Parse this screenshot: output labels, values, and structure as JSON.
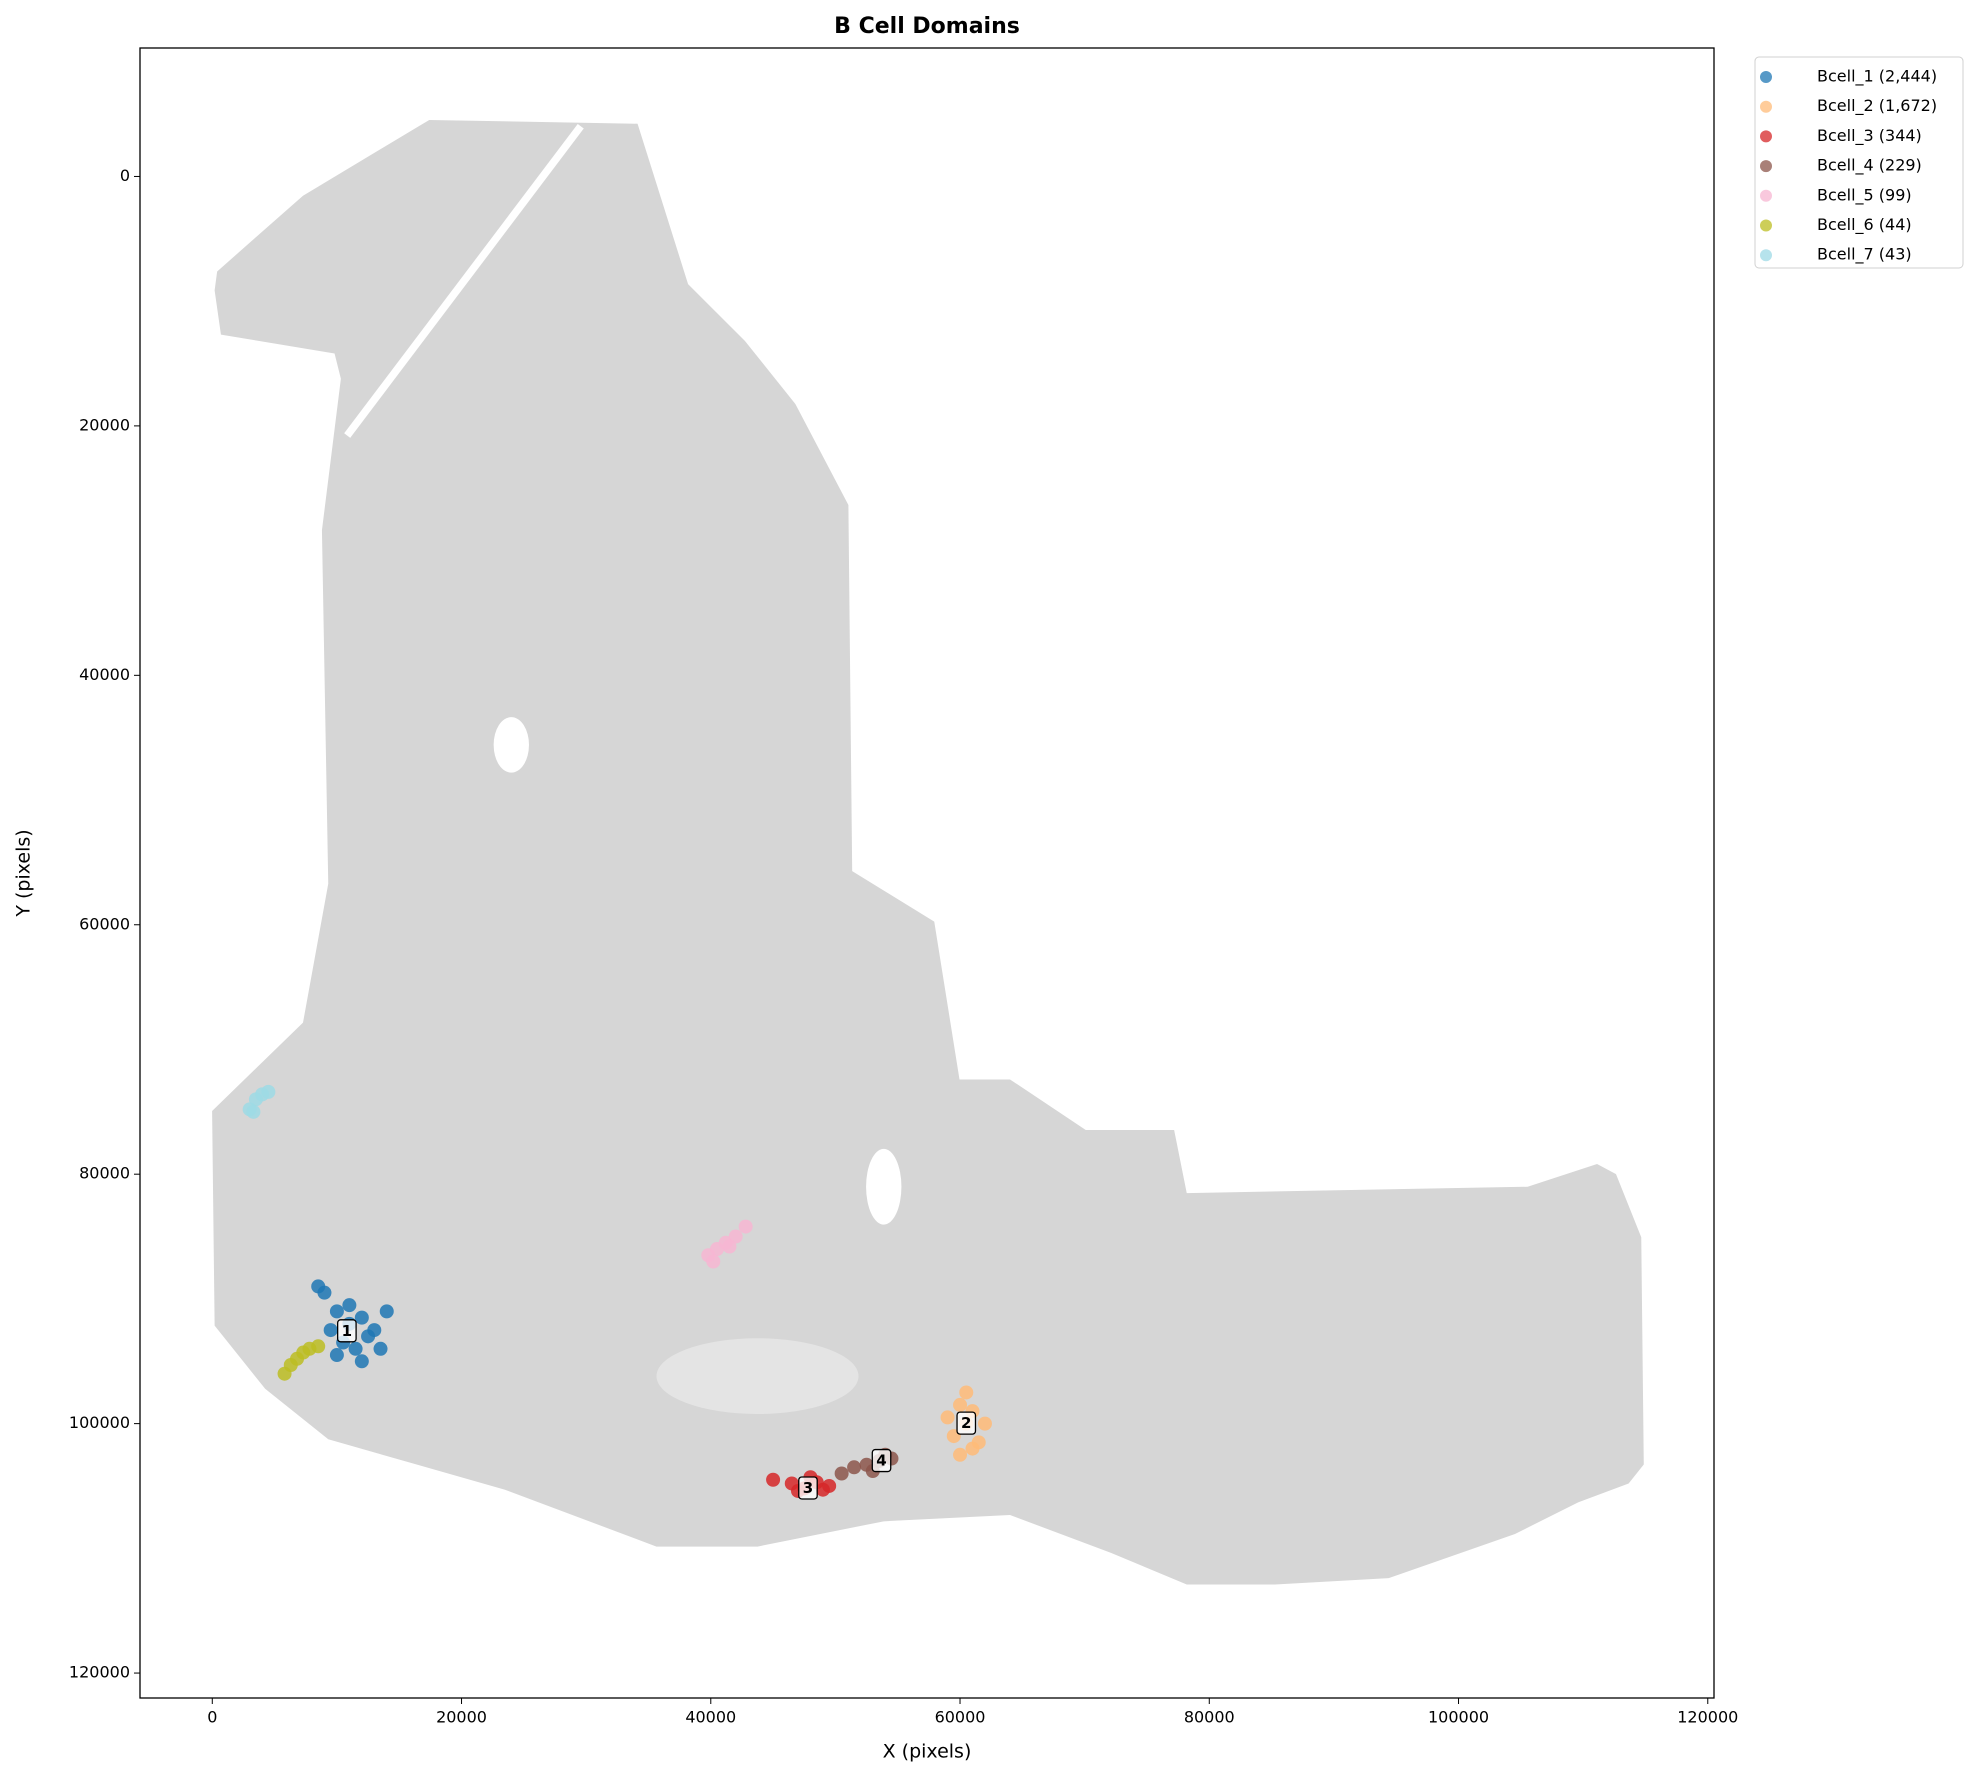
{
  "chart_data": {
    "type": "scatter",
    "title": "B Cell Domains",
    "x_label": "X (pixels)",
    "y_label": "Y (pixels)",
    "xlim": [
      -5800,
      120500
    ],
    "ylim": [
      122000,
      -10300
    ],
    "xticks": [
      0,
      20000,
      40000,
      60000,
      80000,
      100000,
      120000
    ],
    "yticks": [
      0,
      20000,
      40000,
      60000,
      80000,
      100000,
      120000
    ],
    "legend": "outside-upper-right",
    "series": [
      {
        "name": "Bcell_1 (2,444)",
        "color": "#1f77b4",
        "x": [
          9000,
          10000,
          11000,
          12000,
          13000,
          10500,
          11500,
          12500,
          9500,
          14000,
          10000,
          12000,
          11000,
          13500,
          8500
        ],
        "values": [
          89500,
          91000,
          92000,
          91500,
          92500,
          93500,
          94000,
          93000,
          92500,
          91000,
          94500,
          95000,
          90500,
          94000,
          89000
        ]
      },
      {
        "name": "Bcell_2 (1,672)",
        "color": "#ffbb78",
        "x": [
          59000,
          60000,
          61000,
          62000,
          60500,
          59500,
          61500,
          60000,
          61000,
          60500
        ],
        "values": [
          99500,
          98500,
          99000,
          100000,
          97500,
          101000,
          101500,
          102500,
          102000,
          100000
        ]
      },
      {
        "name": "Bcell_3 (344)",
        "color": "#d62728",
        "x": [
          45000,
          46500,
          47500,
          48500,
          49500,
          47000,
          48000,
          49000
        ],
        "values": [
          104500,
          104800,
          105200,
          104700,
          105000,
          105400,
          104300,
          105300
        ]
      },
      {
        "name": "Bcell_4 (229)",
        "color": "#8c564b",
        "x": [
          50500,
          51500,
          52500,
          53500,
          54500,
          53000,
          54000
        ],
        "values": [
          104000,
          103500,
          103300,
          103000,
          102800,
          103800,
          102500
        ]
      },
      {
        "name": "Bcell_5 (99)",
        "color": "#f7b6d2",
        "x": [
          39800,
          40500,
          41200,
          42000,
          42800,
          41500,
          40200
        ],
        "values": [
          86500,
          86000,
          85500,
          85000,
          84200,
          85800,
          87000
        ]
      },
      {
        "name": "Bcell_6 (44)",
        "color": "#bcbd22",
        "x": [
          5800,
          6300,
          6800,
          7300,
          7800,
          8500
        ],
        "values": [
          96000,
          95300,
          94800,
          94300,
          94000,
          93800
        ]
      },
      {
        "name": "Bcell_7 (43)",
        "color": "#9edae5",
        "x": [
          3000,
          3500,
          4000,
          4500,
          3300
        ],
        "values": [
          74800,
          74000,
          73600,
          73400,
          75000
        ]
      }
    ],
    "annotations": [
      {
        "text": "1",
        "x": 10800,
        "y": 92600
      },
      {
        "text": "2",
        "x": 60500,
        "y": 100000
      },
      {
        "text": "3",
        "x": 47800,
        "y": 105200
      },
      {
        "text": "4",
        "x": 53700,
        "y": 103000
      }
    ]
  }
}
